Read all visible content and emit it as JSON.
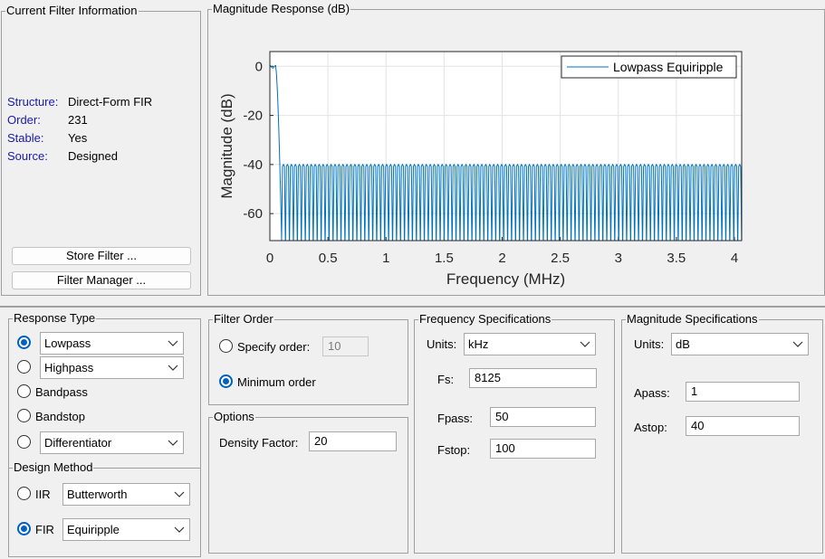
{
  "info_panel": {
    "title": "Current Filter Information",
    "rows": [
      {
        "key": "Structure:",
        "value": "Direct-Form FIR"
      },
      {
        "key": "Order:",
        "value": "231"
      },
      {
        "key": "Stable:",
        "value": "Yes"
      },
      {
        "key": "Source:",
        "value": "Designed"
      }
    ],
    "store_button": "Store Filter ...",
    "manager_button": "Filter Manager ..."
  },
  "plot_panel": {
    "title": "Magnitude Response (dB)"
  },
  "chart_data": {
    "type": "line",
    "title": "",
    "xlabel": "Frequency (MHz)",
    "ylabel": "Magnitude (dB)",
    "xlim": [
      0,
      4.0625
    ],
    "ylim": [
      -71,
      6
    ],
    "xticks": [
      "0",
      "0.5",
      "1",
      "1.5",
      "2",
      "2.5",
      "3",
      "3.5",
      "4"
    ],
    "yticks": [
      "0",
      "-20",
      "-40",
      "-60"
    ],
    "grid": true,
    "legend": "top-right",
    "series": [
      {
        "name": "Lowpass Equiripple",
        "color": "#0072bd",
        "passband_edge_MHz": 0.05,
        "stopband_edge_MHz": 0.1,
        "passband_ripple_dB": 1,
        "stopband_level_dB": -40,
        "stopband_lobe_count": 116
      }
    ]
  },
  "response_type": {
    "title": "Response Type",
    "options": [
      {
        "label": "Lowpass",
        "selected": true,
        "has_dropdown": true
      },
      {
        "label": "Highpass",
        "selected": false,
        "has_dropdown": true
      },
      {
        "label": "Bandpass",
        "selected": false,
        "has_dropdown": false
      },
      {
        "label": "Bandstop",
        "selected": false,
        "has_dropdown": false
      },
      {
        "label": "Differentiator",
        "selected": false,
        "has_dropdown": true
      }
    ]
  },
  "design_method": {
    "title": "Design Method",
    "iir_label": "IIR",
    "iir_value": "Butterworth",
    "fir_label": "FIR",
    "fir_value": "Equiripple",
    "selected": "FIR"
  },
  "filter_order": {
    "title": "Filter Order",
    "specify_label": "Specify order:",
    "specify_value": "10",
    "minimum_label": "Minimum order",
    "selected": "minimum"
  },
  "options": {
    "title": "Options",
    "density_label": "Density Factor:",
    "density_value": "20"
  },
  "freq_specs": {
    "title": "Frequency Specifications",
    "units_label": "Units:",
    "units_value": "kHz",
    "fs_label": "Fs:",
    "fs_value": "8125",
    "fpass_label": "Fpass:",
    "fpass_value": "50",
    "fstop_label": "Fstop:",
    "fstop_value": "100"
  },
  "mag_specs": {
    "title": "Magnitude Specifications",
    "units_label": "Units:",
    "units_value": "dB",
    "apass_label": "Apass:",
    "apass_value": "1",
    "astop_label": "Astop:",
    "astop_value": "40"
  }
}
